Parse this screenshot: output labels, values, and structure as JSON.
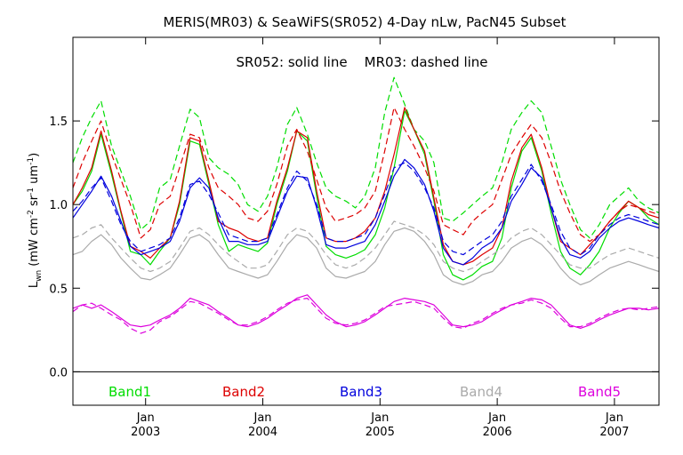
{
  "chart_data": {
    "type": "line",
    "title": "MERIS(MR03) & SeaWiFS(SR052) 4-Day nLw, PacN45 Subset",
    "subtitle": "SR052: solid line    MR03: dashed line",
    "ylabel": "Lwn (mW cm-2 sr-1 um-1)",
    "ylabel_parts": {
      "main": "L",
      "sub": "wn",
      "open": " (mW cm",
      "exp1": "-2",
      "mid1": " sr",
      "exp2": "-1",
      "mid2": " um",
      "exp3": "-1",
      "close": ")"
    },
    "ylim": [
      -0.2,
      2.0
    ],
    "xlim": [
      2002.38,
      2007.38
    ],
    "yticks": [
      {
        "value": 0.0,
        "label": "0.0"
      },
      {
        "value": 0.5,
        "label": "0.5"
      },
      {
        "value": 1.0,
        "label": "1.0"
      },
      {
        "value": 1.5,
        "label": "1.5"
      }
    ],
    "xticks": [
      {
        "value": 2003.0,
        "top": "Jan",
        "bottom": "2003"
      },
      {
        "value": 2004.0,
        "top": "Jan",
        "bottom": "2004"
      },
      {
        "value": 2005.0,
        "top": "Jan",
        "bottom": "2005"
      },
      {
        "value": 2006.0,
        "top": "Jan",
        "bottom": "2006"
      },
      {
        "value": 2007.0,
        "top": "Jan",
        "bottom": "2007"
      }
    ],
    "reference_line": 0.0,
    "legend_labels": [
      {
        "text": "Band1",
        "color": "#00dd00"
      },
      {
        "text": "Band2",
        "color": "#dd0000"
      },
      {
        "text": "Band3",
        "color": "#0000dd"
      },
      {
        "text": "Band4",
        "color": "#aaaaaa"
      },
      {
        "text": "Band5",
        "color": "#dd00dd"
      }
    ],
    "x": [
      2002.38,
      2002.46,
      2002.54,
      2002.62,
      2002.71,
      2002.79,
      2002.87,
      2002.96,
      2003.04,
      2003.12,
      2003.21,
      2003.29,
      2003.38,
      2003.46,
      2003.54,
      2003.62,
      2003.71,
      2003.79,
      2003.87,
      2003.96,
      2004.04,
      2004.12,
      2004.21,
      2004.29,
      2004.38,
      2004.46,
      2004.54,
      2004.62,
      2004.71,
      2004.79,
      2004.87,
      2004.96,
      2005.04,
      2005.12,
      2005.21,
      2005.29,
      2005.38,
      2005.46,
      2005.54,
      2005.62,
      2005.71,
      2005.79,
      2005.87,
      2005.96,
      2006.04,
      2006.12,
      2006.21,
      2006.29,
      2006.38,
      2006.46,
      2006.54,
      2006.62,
      2006.71,
      2006.79,
      2006.87,
      2006.96,
      2007.04,
      2007.12,
      2007.21,
      2007.29,
      2007.38
    ],
    "series": [
      {
        "band": "Band1",
        "style": "solid",
        "color": "#00dd00",
        "values": [
          1.0,
          1.08,
          1.2,
          1.42,
          1.18,
          0.95,
          0.72,
          0.7,
          0.64,
          0.72,
          0.8,
          1.0,
          1.38,
          1.36,
          1.12,
          0.88,
          0.72,
          0.76,
          0.74,
          0.72,
          0.77,
          1.0,
          1.2,
          1.44,
          1.38,
          1.05,
          0.75,
          0.7,
          0.68,
          0.7,
          0.73,
          0.82,
          0.98,
          1.22,
          1.56,
          1.45,
          1.3,
          1.02,
          0.7,
          0.58,
          0.55,
          0.58,
          0.63,
          0.66,
          0.8,
          1.1,
          1.32,
          1.4,
          1.2,
          0.95,
          0.72,
          0.62,
          0.58,
          0.64,
          0.72,
          0.86,
          0.95,
          1.02,
          0.98,
          0.92,
          0.88
        ]
      },
      {
        "band": "Band1",
        "style": "dashed",
        "color": "#00dd00",
        "values": [
          1.25,
          1.4,
          1.52,
          1.62,
          1.35,
          1.2,
          1.05,
          0.85,
          0.9,
          1.1,
          1.15,
          1.35,
          1.57,
          1.52,
          1.28,
          1.22,
          1.18,
          1.12,
          1.0,
          0.96,
          1.05,
          1.22,
          1.48,
          1.58,
          1.42,
          1.25,
          1.1,
          1.05,
          1.02,
          0.98,
          1.05,
          1.22,
          1.55,
          1.76,
          1.6,
          1.45,
          1.38,
          1.25,
          0.92,
          0.9,
          0.95,
          1.0,
          1.05,
          1.1,
          1.25,
          1.45,
          1.55,
          1.62,
          1.55,
          1.35,
          1.15,
          1.0,
          0.85,
          0.8,
          0.88,
          1.0,
          1.05,
          1.1,
          1.02,
          0.98,
          0.95
        ]
      },
      {
        "band": "Band2",
        "style": "solid",
        "color": "#dd0000",
        "values": [
          1.0,
          1.1,
          1.22,
          1.44,
          1.2,
          0.96,
          0.75,
          0.72,
          0.68,
          0.74,
          0.8,
          1.02,
          1.4,
          1.38,
          1.14,
          0.9,
          0.86,
          0.84,
          0.8,
          0.78,
          0.8,
          1.02,
          1.22,
          1.44,
          1.4,
          1.08,
          0.8,
          0.78,
          0.78,
          0.8,
          0.84,
          0.92,
          1.08,
          1.3,
          1.58,
          1.45,
          1.32,
          1.04,
          0.76,
          0.66,
          0.64,
          0.66,
          0.7,
          0.74,
          0.86,
          1.14,
          1.34,
          1.42,
          1.22,
          0.98,
          0.78,
          0.74,
          0.7,
          0.76,
          0.82,
          0.9,
          0.96,
          1.02,
          0.98,
          0.94,
          0.92
        ]
      },
      {
        "band": "Band2",
        "style": "dashed",
        "color": "#dd0000",
        "values": [
          1.1,
          1.25,
          1.38,
          1.5,
          1.3,
          1.15,
          1.0,
          0.8,
          0.85,
          1.0,
          1.05,
          1.22,
          1.42,
          1.4,
          1.22,
          1.1,
          1.05,
          1.0,
          0.92,
          0.9,
          0.96,
          1.12,
          1.35,
          1.45,
          1.32,
          1.15,
          0.98,
          0.9,
          0.92,
          0.94,
          0.98,
          1.08,
          1.32,
          1.58,
          1.45,
          1.35,
          1.22,
          1.08,
          0.88,
          0.85,
          0.82,
          0.9,
          0.95,
          1.0,
          1.15,
          1.3,
          1.4,
          1.48,
          1.4,
          1.25,
          1.08,
          0.95,
          0.82,
          0.78,
          0.82,
          0.9,
          0.96,
          1.0,
          0.98,
          0.96,
          0.94
        ]
      },
      {
        "band": "Band3",
        "style": "solid",
        "color": "#0000dd",
        "values": [
          0.92,
          1.0,
          1.08,
          1.17,
          1.05,
          0.9,
          0.75,
          0.7,
          0.72,
          0.74,
          0.78,
          0.9,
          1.1,
          1.16,
          1.1,
          0.92,
          0.78,
          0.78,
          0.76,
          0.76,
          0.78,
          0.92,
          1.08,
          1.17,
          1.16,
          0.98,
          0.76,
          0.74,
          0.74,
          0.76,
          0.78,
          0.88,
          1.02,
          1.17,
          1.27,
          1.22,
          1.12,
          0.96,
          0.74,
          0.66,
          0.64,
          0.68,
          0.74,
          0.78,
          0.86,
          1.02,
          1.12,
          1.22,
          1.16,
          0.98,
          0.8,
          0.7,
          0.68,
          0.72,
          0.8,
          0.86,
          0.9,
          0.92,
          0.9,
          0.88,
          0.86
        ]
      },
      {
        "band": "Band3",
        "style": "dashed",
        "color": "#0000dd",
        "values": [
          0.96,
          1.02,
          1.1,
          1.16,
          1.02,
          0.88,
          0.78,
          0.72,
          0.74,
          0.76,
          0.8,
          0.92,
          1.12,
          1.14,
          1.06,
          0.95,
          0.82,
          0.8,
          0.78,
          0.78,
          0.8,
          0.94,
          1.1,
          1.2,
          1.14,
          1.0,
          0.8,
          0.78,
          0.78,
          0.8,
          0.82,
          0.92,
          1.06,
          1.22,
          1.25,
          1.2,
          1.1,
          0.98,
          0.78,
          0.72,
          0.7,
          0.74,
          0.78,
          0.82,
          0.9,
          1.05,
          1.15,
          1.24,
          1.14,
          1.0,
          0.84,
          0.74,
          0.7,
          0.74,
          0.82,
          0.88,
          0.92,
          0.94,
          0.92,
          0.9,
          0.88
        ]
      },
      {
        "band": "Band4",
        "style": "solid",
        "color": "#aaaaaa",
        "values": [
          0.7,
          0.72,
          0.78,
          0.82,
          0.76,
          0.68,
          0.62,
          0.56,
          0.55,
          0.58,
          0.62,
          0.7,
          0.8,
          0.82,
          0.78,
          0.7,
          0.62,
          0.6,
          0.58,
          0.56,
          0.58,
          0.66,
          0.76,
          0.82,
          0.8,
          0.74,
          0.62,
          0.57,
          0.56,
          0.58,
          0.6,
          0.66,
          0.76,
          0.84,
          0.86,
          0.84,
          0.78,
          0.7,
          0.58,
          0.54,
          0.52,
          0.54,
          0.58,
          0.6,
          0.66,
          0.74,
          0.78,
          0.8,
          0.76,
          0.7,
          0.62,
          0.56,
          0.52,
          0.54,
          0.58,
          0.62,
          0.64,
          0.66,
          0.64,
          0.62,
          0.6
        ]
      },
      {
        "band": "Band4",
        "style": "dashed",
        "color": "#aaaaaa",
        "values": [
          0.8,
          0.82,
          0.86,
          0.88,
          0.8,
          0.74,
          0.68,
          0.62,
          0.6,
          0.62,
          0.66,
          0.74,
          0.84,
          0.86,
          0.82,
          0.76,
          0.7,
          0.66,
          0.62,
          0.62,
          0.64,
          0.72,
          0.82,
          0.86,
          0.84,
          0.78,
          0.7,
          0.64,
          0.62,
          0.64,
          0.68,
          0.74,
          0.82,
          0.9,
          0.88,
          0.86,
          0.82,
          0.76,
          0.66,
          0.62,
          0.6,
          0.62,
          0.66,
          0.7,
          0.74,
          0.8,
          0.84,
          0.86,
          0.82,
          0.76,
          0.7,
          0.64,
          0.62,
          0.62,
          0.66,
          0.7,
          0.72,
          0.74,
          0.72,
          0.7,
          0.68
        ]
      },
      {
        "band": "Band5",
        "style": "solid",
        "color": "#dd00dd",
        "values": [
          0.38,
          0.4,
          0.38,
          0.4,
          0.36,
          0.32,
          0.28,
          0.27,
          0.28,
          0.31,
          0.34,
          0.38,
          0.44,
          0.42,
          0.4,
          0.36,
          0.32,
          0.28,
          0.27,
          0.29,
          0.32,
          0.36,
          0.4,
          0.44,
          0.46,
          0.4,
          0.34,
          0.3,
          0.27,
          0.28,
          0.3,
          0.34,
          0.38,
          0.42,
          0.44,
          0.43,
          0.42,
          0.4,
          0.34,
          0.28,
          0.27,
          0.28,
          0.3,
          0.34,
          0.37,
          0.4,
          0.42,
          0.44,
          0.43,
          0.4,
          0.34,
          0.28,
          0.26,
          0.28,
          0.31,
          0.34,
          0.36,
          0.38,
          0.38,
          0.37,
          0.38
        ]
      },
      {
        "band": "Band5",
        "style": "dashed",
        "color": "#dd00dd",
        "values": [
          0.36,
          0.4,
          0.41,
          0.38,
          0.34,
          0.31,
          0.26,
          0.23,
          0.25,
          0.3,
          0.33,
          0.37,
          0.42,
          0.41,
          0.38,
          0.35,
          0.31,
          0.28,
          0.28,
          0.3,
          0.33,
          0.37,
          0.41,
          0.43,
          0.44,
          0.38,
          0.32,
          0.29,
          0.28,
          0.29,
          0.31,
          0.35,
          0.39,
          0.4,
          0.41,
          0.42,
          0.4,
          0.38,
          0.32,
          0.27,
          0.26,
          0.29,
          0.31,
          0.35,
          0.38,
          0.4,
          0.41,
          0.43,
          0.41,
          0.38,
          0.32,
          0.27,
          0.27,
          0.29,
          0.32,
          0.35,
          0.37,
          0.38,
          0.37,
          0.38,
          0.39
        ]
      }
    ]
  }
}
